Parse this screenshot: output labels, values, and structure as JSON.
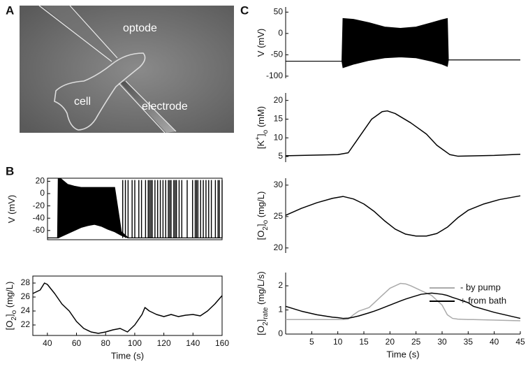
{
  "panel_labels": [
    "A",
    "B",
    "C"
  ],
  "photo": {
    "labels": [
      "optode",
      "cell",
      "electrode"
    ]
  },
  "chart_data": [
    {
      "type": "band",
      "ylabel": [
        {
          "text": "V (mV)"
        }
      ],
      "xlim": [
        30,
        160
      ],
      "ylim": [
        -75,
        25
      ],
      "yticks": [
        20,
        0,
        -20,
        -40,
        -60
      ],
      "x": [
        30,
        37.5,
        38,
        40,
        45,
        50,
        55,
        60,
        65,
        70,
        75,
        80,
        85,
        90,
        160
      ],
      "upper": [
        -72,
        -72,
        24,
        24,
        15,
        12,
        10,
        10,
        10,
        10,
        10,
        10,
        -62,
        -72,
        -72
      ],
      "lower": [
        -72,
        -72,
        -72,
        -70,
        -65,
        -60,
        -55,
        -52,
        -50,
        -53,
        -58,
        -62,
        -68,
        -72,
        -72
      ],
      "spike_x": [
        86,
        88,
        90,
        93,
        95,
        98,
        100,
        103,
        105,
        106,
        107,
        108,
        110,
        112,
        114,
        116,
        118,
        120,
        121,
        122,
        124,
        125,
        126,
        128,
        130,
        134,
        138,
        140,
        141,
        142,
        144,
        146,
        148,
        150,
        152,
        155,
        157,
        158,
        160
      ],
      "spike_top": 22,
      "spike_base": -72,
      "color": "#000000"
    },
    {
      "type": "line",
      "ylabel": [
        {
          "text": "[O"
        },
        {
          "text": "2",
          "shift": "sub"
        },
        {
          "text": "]"
        },
        {
          "text": "o",
          "shift": "sub"
        },
        {
          "text": " (mg/L)"
        }
      ],
      "xlabel": "Time (s)",
      "xlim": [
        30,
        160
      ],
      "xticks": [
        40,
        60,
        80,
        100,
        120,
        140,
        160
      ],
      "ylim": [
        20.5,
        29
      ],
      "yticks": [
        22,
        24,
        26,
        28
      ],
      "x": [
        30,
        35,
        38,
        40,
        45,
        50,
        55,
        60,
        65,
        70,
        75,
        80,
        85,
        90,
        95,
        100,
        105,
        107,
        110,
        115,
        120,
        125,
        130,
        135,
        140,
        145,
        150,
        155,
        160
      ],
      "series": [
        {
          "color": "#000000",
          "values": [
            26.5,
            27,
            28,
            27.8,
            26.5,
            25,
            24,
            22.5,
            21.5,
            21,
            20.8,
            21,
            21.3,
            21.5,
            21,
            22,
            23.5,
            24.5,
            24,
            23.5,
            23.2,
            23.5,
            23.2,
            23.4,
            23.5,
            23.3,
            24,
            25,
            26.2
          ]
        }
      ]
    },
    {
      "type": "band",
      "ylabel": [
        {
          "text": "V (mV)"
        }
      ],
      "xlim": [
        0,
        45
      ],
      "ylim": [
        -105,
        62
      ],
      "yticks": [
        50,
        0,
        -50,
        -100
      ],
      "x": [
        0,
        10.8,
        11,
        13,
        16,
        19,
        22,
        25,
        28,
        30,
        31,
        31.2,
        45
      ],
      "upper": [
        -65,
        -65,
        35,
        33,
        25,
        15,
        12,
        15,
        25,
        32,
        35,
        -62,
        -62
      ],
      "lower": [
        -65,
        -65,
        -80,
        -72,
        -63,
        -57,
        -55,
        -57,
        -65,
        -72,
        -77,
        -62,
        -62
      ],
      "color": "#000000"
    },
    {
      "type": "line",
      "ylabel": [
        {
          "text": "[K"
        },
        {
          "text": "+",
          "shift": "super"
        },
        {
          "text": "]"
        },
        {
          "text": "o",
          "shift": "sub"
        },
        {
          "text": " (mM)"
        }
      ],
      "xlim": [
        0,
        45
      ],
      "ylim": [
        3.5,
        22
      ],
      "yticks": [
        5,
        10,
        15,
        20
      ],
      "x": [
        0,
        10,
        12,
        14,
        16.5,
        18.5,
        19.5,
        21,
        24,
        27,
        29,
        31.5,
        33,
        40,
        45
      ],
      "series": [
        {
          "color": "#000000",
          "values": [
            5.2,
            5.5,
            6,
            10,
            15,
            17,
            17.2,
            16.5,
            14,
            11,
            8,
            5.5,
            5.1,
            5.3,
            5.6
          ]
        }
      ]
    },
    {
      "type": "line",
      "ylabel": [
        {
          "text": "[O"
        },
        {
          "text": "2",
          "shift": "sub"
        },
        {
          "text": "]"
        },
        {
          "text": "o",
          "shift": "sub"
        },
        {
          "text": " (mg/L)"
        }
      ],
      "xlim": [
        0,
        45
      ],
      "ylim": [
        19.2,
        31.1
      ],
      "yticks": [
        20,
        25,
        30
      ],
      "x": [
        0,
        3,
        6,
        9,
        11,
        13,
        15,
        17,
        19,
        21,
        23,
        25,
        27,
        29,
        31,
        33,
        35,
        38,
        41,
        45
      ],
      "series": [
        {
          "color": "#000000",
          "values": [
            25.2,
            26.3,
            27.2,
            27.9,
            28.2,
            27.8,
            27,
            25.8,
            24.3,
            23,
            22.2,
            21.9,
            21.9,
            22.3,
            23.3,
            24.8,
            26,
            27,
            27.7,
            28.3
          ]
        }
      ]
    },
    {
      "type": "line",
      "ylabel": [
        {
          "text": "[O"
        },
        {
          "text": "2",
          "shift": "sub"
        },
        {
          "text": "]"
        },
        {
          "text": "rate",
          "shift": "sub"
        },
        {
          "text": " (mg/L/s)"
        }
      ],
      "xlabel": "Time (s)",
      "xlim": [
        0,
        45
      ],
      "xticks": [
        5,
        10,
        15,
        20,
        25,
        30,
        35,
        40,
        45
      ],
      "ylim": [
        0,
        2.55
      ],
      "yticks": [
        0,
        1,
        2
      ],
      "legend": "upper right",
      "x": [
        0,
        3,
        6,
        9,
        10,
        11,
        12,
        13,
        14,
        16,
        17,
        18,
        20,
        22,
        23,
        24,
        26,
        28,
        30,
        31,
        32,
        33,
        35,
        36,
        40,
        45
      ],
      "series": [
        {
          "name": "- by pump",
          "color": "#aaaaaa",
          "values": [
            0.6,
            0.6,
            0.6,
            0.6,
            0.6,
            0.6,
            0.62,
            0.8,
            0.95,
            1.1,
            1.3,
            1.5,
            1.9,
            2.1,
            2.08,
            2.0,
            1.8,
            1.6,
            1.2,
            0.8,
            0.65,
            0.62,
            0.6,
            0.6,
            0.58,
            0.55
          ]
        },
        {
          "name": "+ from bath",
          "color": "#000000",
          "values": [
            1.15,
            0.95,
            0.8,
            0.7,
            0.68,
            0.65,
            0.66,
            0.7,
            0.75,
            0.88,
            0.95,
            1.03,
            1.2,
            1.37,
            1.45,
            1.52,
            1.65,
            1.7,
            1.65,
            1.6,
            1.52,
            1.45,
            1.3,
            1.15,
            0.9,
            0.65
          ]
        }
      ]
    }
  ]
}
